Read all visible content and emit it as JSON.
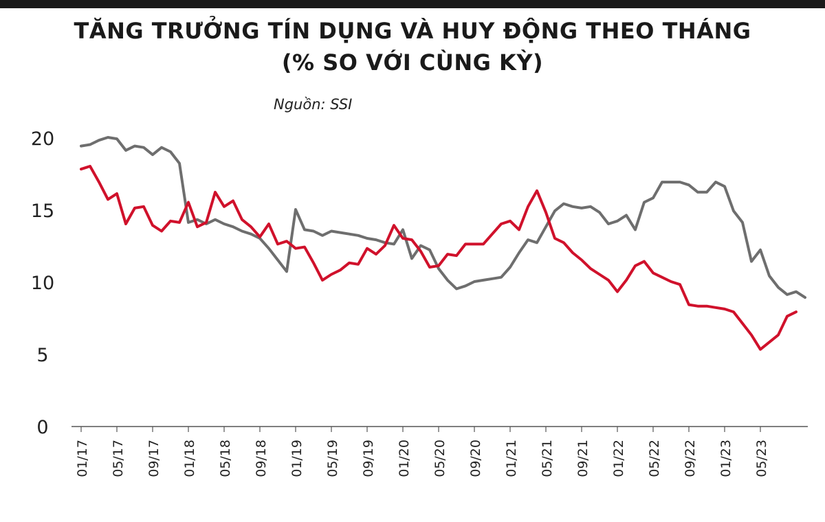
{
  "chart_data": {
    "type": "line",
    "title": "TĂNG TRƯỞNG TÍN DỤNG VÀ HUY ĐỘNG THEO THÁNG",
    "subtitle": "(% SO VỚI CÙNG KỲ)",
    "source": "Nguồn: SSI",
    "ylim": [
      0,
      20
    ],
    "yticks": [
      "0",
      "5",
      "10",
      "15",
      "20"
    ],
    "xticks": [
      "01/17",
      "05/17",
      "09/17",
      "01/18",
      "05/18",
      "09/18",
      "01/19",
      "05/19",
      "09/19",
      "01/20",
      "05/20",
      "09/20",
      "01/21",
      "05/21",
      "09/21",
      "01/22",
      "05/22",
      "09/22",
      "01/23",
      "05/23"
    ],
    "grid": false,
    "legend": "none",
    "series": [
      {
        "color": "#6e6e6e",
        "values": [
          19.4,
          19.5,
          19.8,
          20.0,
          19.9,
          19.1,
          19.4,
          19.3,
          18.8,
          19.3,
          19.0,
          18.2,
          14.1,
          14.3,
          14.0,
          14.3,
          14.0,
          13.8,
          13.5,
          13.3,
          13.0,
          12.3,
          11.5,
          10.7,
          15.0,
          13.6,
          13.5,
          13.2,
          13.5,
          13.4,
          13.3,
          13.2,
          13.0,
          12.9,
          12.7,
          12.6,
          13.6,
          11.6,
          12.5,
          12.2,
          10.9,
          10.1,
          9.5,
          9.7,
          10.0,
          10.1,
          10.2,
          10.3,
          11.0,
          12.0,
          12.9,
          12.7,
          13.8,
          14.9,
          15.4,
          15.2,
          15.1,
          15.2,
          14.8,
          14.0,
          14.2,
          14.6,
          13.6,
          15.5,
          15.8,
          16.9,
          16.9,
          16.9,
          16.7,
          16.2,
          16.2,
          16.9,
          16.6,
          14.9,
          14.1,
          11.4,
          12.2,
          10.4,
          9.6,
          9.1,
          9.3,
          8.9
        ]
      },
      {
        "color": "#d0112b",
        "values": [
          17.8,
          18.0,
          16.9,
          15.7,
          16.1,
          14.0,
          15.1,
          15.2,
          13.9,
          13.5,
          14.2,
          14.1,
          15.5,
          13.8,
          14.1,
          16.2,
          15.2,
          15.6,
          14.3,
          13.8,
          13.1,
          14.0,
          12.6,
          12.8,
          12.3,
          12.4,
          11.3,
          10.1,
          10.5,
          10.8,
          11.3,
          11.2,
          12.3,
          11.9,
          12.5,
          13.9,
          13.0,
          12.9,
          12.1,
          11.0,
          11.1,
          11.9,
          11.8,
          12.6,
          12.6,
          12.6,
          13.3,
          14.0,
          14.2,
          13.6,
          15.2,
          16.3,
          14.8,
          13.0,
          12.7,
          12.0,
          11.5,
          10.9,
          10.5,
          10.1,
          9.3,
          10.1,
          11.1,
          11.4,
          10.6,
          10.3,
          10.0,
          9.8,
          8.4,
          8.3,
          8.3,
          8.2,
          8.1,
          7.9,
          7.1,
          6.3,
          5.3,
          5.8,
          6.3,
          7.6,
          7.9
        ]
      }
    ]
  }
}
